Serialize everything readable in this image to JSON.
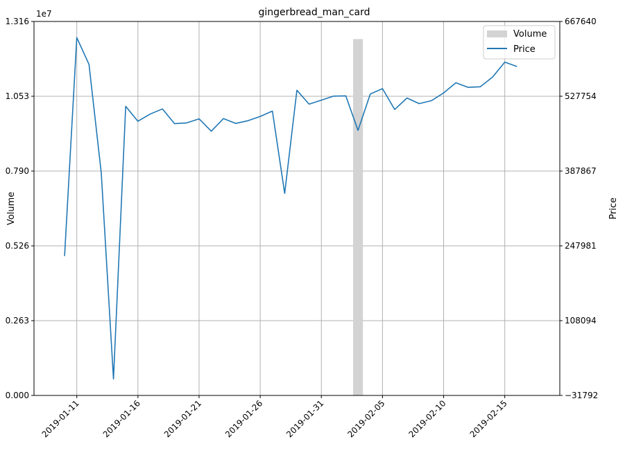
{
  "chart_data": {
    "type": "line",
    "title": "gingerbread_man_card",
    "xlabel": "",
    "ylabel_left": "Volume",
    "ylabel_right": "Price",
    "left_axis": {
      "offset_label": "1e7",
      "ylim": [
        0,
        13160000
      ],
      "ticks": [
        0,
        2632000,
        5264000,
        7896000,
        10528000,
        13160000
      ],
      "tick_labels": [
        "0.000",
        "0.263",
        "0.526",
        "0.790",
        "1.053",
        "1.316"
      ]
    },
    "right_axis": {
      "ylim": [
        -31792,
        667640
      ],
      "ticks": [
        -31792,
        108094,
        247981,
        387867,
        527754,
        667640
      ],
      "tick_labels": [
        "−31792",
        "108094",
        "247981",
        "387867",
        "527754",
        "667640"
      ]
    },
    "x_axis": {
      "range": [
        "2019-01-07T12:00",
        "2019-02-19T12:00"
      ],
      "ticks": [
        "2019-01-11",
        "2019-01-16",
        "2019-01-21",
        "2019-01-26",
        "2019-01-31",
        "2019-02-05",
        "2019-02-10",
        "2019-02-15"
      ],
      "tick_labels": [
        "2019-01-11",
        "2019-01-16",
        "2019-01-21",
        "2019-01-26",
        "2019-01-31",
        "2019-02-05",
        "2019-02-10",
        "2019-02-15"
      ]
    },
    "grid": true,
    "legend": {
      "position": "top-right",
      "entries": [
        "Volume",
        "Price"
      ]
    },
    "colors": {
      "volume": "#d3d3d3",
      "price": "#1f77b4",
      "grid": "#b0b0b0"
    },
    "series": [
      {
        "name": "Volume",
        "type": "bar",
        "x": [
          "2019-02-03"
        ],
        "values": [
          12540000
        ]
      },
      {
        "name": "Price",
        "type": "line",
        "x": [
          "2019-01-10",
          "2019-01-11",
          "2019-01-12",
          "2019-01-13",
          "2019-01-14",
          "2019-01-15",
          "2019-01-16",
          "2019-01-17",
          "2019-01-18",
          "2019-01-19",
          "2019-01-20",
          "2019-01-21",
          "2019-01-22",
          "2019-01-23",
          "2019-01-24",
          "2019-01-25",
          "2019-01-26",
          "2019-01-27",
          "2019-01-28",
          "2019-01-29",
          "2019-01-30",
          "2019-01-31",
          "2019-02-01",
          "2019-02-02",
          "2019-02-03",
          "2019-02-04",
          "2019-02-05",
          "2019-02-06",
          "2019-02-07",
          "2019-02-08",
          "2019-02-09",
          "2019-02-10",
          "2019-02-11",
          "2019-02-12",
          "2019-02-13",
          "2019-02-14",
          "2019-02-15",
          "2019-02-16"
        ],
        "values": [
          229000,
          637500,
          587500,
          384000,
          -1000,
          509000,
          481000,
          494500,
          504000,
          476500,
          478000,
          485500,
          462500,
          486000,
          477000,
          482000,
          490000,
          500000,
          346000,
          539000,
          513000,
          520500,
          528000,
          528500,
          464000,
          532000,
          542000,
          503000,
          524500,
          514000,
          519500,
          534000,
          553000,
          544500,
          545500,
          563500,
          591500,
          583500
        ]
      }
    ]
  }
}
